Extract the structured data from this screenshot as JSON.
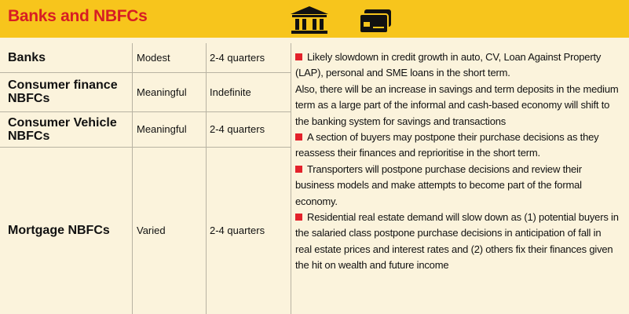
{
  "header": {
    "title": "Banks and NBFCs"
  },
  "table": {
    "rows": [
      [
        "Banks",
        "Modest",
        "2-4 quarters"
      ],
      [
        "Consumer finance NBFCs",
        "Meaningful",
        "Indefinite"
      ],
      [
        "Consumer Vehicle NBFCs",
        "Meaningful",
        "2-4 quarters"
      ],
      [
        "Mortgage NBFCs",
        "Varied",
        "2-4 quarters"
      ]
    ],
    "notes": [
      "Likely slowdown in credit growth in auto, CV, Loan Against Property (LAP), personal and SME loans in the short term.",
      "Also, there will be an increase in savings and term deposits in the medium term as a large part of the informal and cash-based economy will shift to the banking system for savings and transactions",
      "A section of buyers may postpone their purchase decisions as they reassess their finances and reprioritise in the short term.",
      "Transporters will postpone purchase decisions and review their business models and make attempts to become part of the formal economy.",
      "Residential real estate demand will slow down as (1) potential buyers in the salaried class postpone purchase decisions in anticipation of fall in real estate prices and interest rates and (2) others fix their finances given the hit on wealth and future income"
    ]
  }
}
